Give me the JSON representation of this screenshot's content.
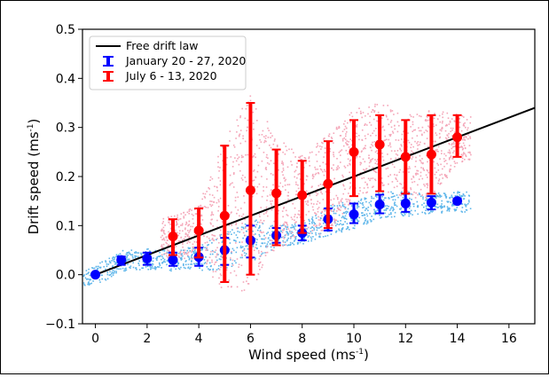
{
  "chart_data": {
    "type": "scatter",
    "xlabel": "Wind speed (ms",
    "xlabel_sup": "-1",
    "xlabel_tail": ")",
    "ylabel": "Drift speed (ms",
    "ylabel_sup": "-1",
    "ylabel_tail": ")",
    "xlim": [
      -0.5,
      17
    ],
    "ylim": [
      -0.1,
      0.5
    ],
    "xticks": [
      0,
      2,
      4,
      6,
      8,
      10,
      12,
      14,
      16
    ],
    "yticks": [
      -0.1,
      0.0,
      0.1,
      0.2,
      0.3,
      0.4,
      0.5
    ],
    "xtick_labels": [
      "0",
      "2",
      "4",
      "6",
      "8",
      "10",
      "12",
      "14",
      "16"
    ],
    "ytick_labels": [
      "−0.1",
      "0.0",
      "0.1",
      "0.2",
      "0.3",
      "0.4",
      "0.5"
    ],
    "legend_position": "top-left",
    "free_drift": {
      "name": "Free drift law",
      "color": "#000000",
      "x": [
        0,
        17
      ],
      "y": [
        0,
        0.34
      ]
    },
    "series": [
      {
        "name": "January 20 - 27, 2020",
        "color": "#0000ff",
        "cloud_color": "#5fb6ea",
        "points": [
          {
            "x": 0,
            "y": 0.0,
            "lo": 0.0,
            "hi": 0.0
          },
          {
            "x": 1,
            "y": 0.03,
            "lo": 0.02,
            "hi": 0.037
          },
          {
            "x": 2,
            "y": 0.033,
            "lo": 0.02,
            "hi": 0.045
          },
          {
            "x": 3,
            "y": 0.03,
            "lo": 0.018,
            "hi": 0.045
          },
          {
            "x": 4,
            "y": 0.036,
            "lo": 0.018,
            "hi": 0.055
          },
          {
            "x": 5,
            "y": 0.05,
            "lo": 0.02,
            "hi": 0.075
          },
          {
            "x": 6,
            "y": 0.07,
            "lo": 0.035,
            "hi": 0.1
          },
          {
            "x": 7,
            "y": 0.08,
            "lo": 0.065,
            "hi": 0.095
          },
          {
            "x": 8,
            "y": 0.085,
            "lo": 0.07,
            "hi": 0.1
          },
          {
            "x": 9,
            "y": 0.113,
            "lo": 0.09,
            "hi": 0.135
          },
          {
            "x": 10,
            "y": 0.123,
            "lo": 0.105,
            "hi": 0.145
          },
          {
            "x": 11,
            "y": 0.143,
            "lo": 0.125,
            "hi": 0.163
          },
          {
            "x": 12,
            "y": 0.145,
            "lo": 0.128,
            "hi": 0.165
          },
          {
            "x": 13,
            "y": 0.147,
            "lo": 0.133,
            "hi": 0.16
          },
          {
            "x": 14,
            "y": 0.15,
            "lo": 0.145,
            "hi": 0.155
          }
        ]
      },
      {
        "name": "July 6 - 13, 2020",
        "color": "#ff0000",
        "cloud_color": "#f4a6b8",
        "points": [
          {
            "x": 3,
            "y": 0.078,
            "lo": 0.04,
            "hi": 0.113
          },
          {
            "x": 4,
            "y": 0.09,
            "lo": 0.035,
            "hi": 0.135
          },
          {
            "x": 5,
            "y": 0.12,
            "lo": -0.015,
            "hi": 0.263
          },
          {
            "x": 6,
            "y": 0.172,
            "lo": 0.0,
            "hi": 0.35
          },
          {
            "x": 7,
            "y": 0.166,
            "lo": 0.06,
            "hi": 0.255
          },
          {
            "x": 8,
            "y": 0.162,
            "lo": 0.085,
            "hi": 0.232
          },
          {
            "x": 9,
            "y": 0.185,
            "lo": 0.095,
            "hi": 0.272
          },
          {
            "x": 10,
            "y": 0.25,
            "lo": 0.16,
            "hi": 0.315
          },
          {
            "x": 11,
            "y": 0.265,
            "lo": 0.17,
            "hi": 0.325
          },
          {
            "x": 12,
            "y": 0.24,
            "lo": 0.165,
            "hi": 0.315
          },
          {
            "x": 13,
            "y": 0.245,
            "lo": 0.165,
            "hi": 0.325
          },
          {
            "x": 14,
            "y": 0.28,
            "lo": 0.24,
            "hi": 0.325
          }
        ]
      }
    ]
  }
}
